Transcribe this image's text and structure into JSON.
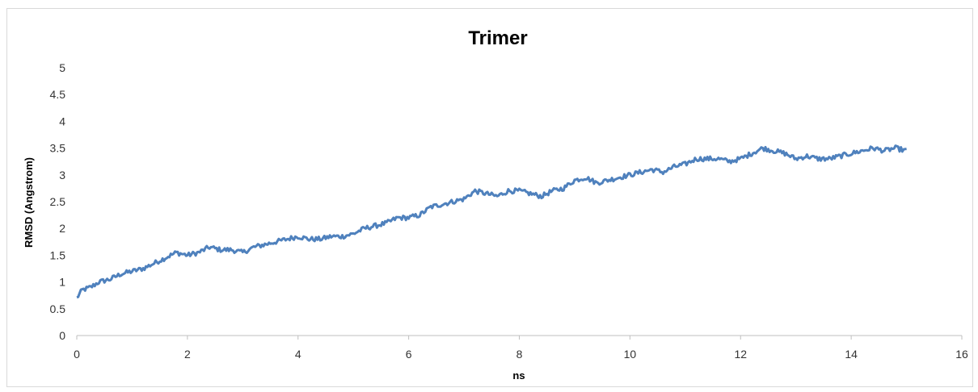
{
  "chart_data": {
    "type": "line",
    "title": "Trimer",
    "xlabel": "ns",
    "ylabel": "RMSD (Angstrom)",
    "xlim": [
      0,
      16
    ],
    "ylim": [
      0,
      5
    ],
    "x_ticks": [
      "0",
      "2",
      "4",
      "6",
      "8",
      "10",
      "12",
      "14",
      "16"
    ],
    "y_ticks": [
      "0",
      "0.5",
      "1",
      "1.5",
      "2",
      "2.5",
      "3",
      "3.5",
      "4",
      "4.5",
      "5"
    ],
    "grid": false,
    "legend": "none",
    "series": [
      {
        "color": "#4f81bd",
        "x": [
          0,
          0.1,
          0.25,
          0.4,
          0.6,
          0.8,
          1.0,
          1.2,
          1.4,
          1.6,
          1.8,
          2.0,
          2.2,
          2.4,
          2.6,
          2.8,
          3.0,
          3.2,
          3.4,
          3.6,
          3.8,
          4.0,
          4.2,
          4.4,
          4.6,
          4.8,
          5.0,
          5.2,
          5.4,
          5.6,
          5.8,
          6.0,
          6.2,
          6.4,
          6.6,
          6.8,
          7.0,
          7.2,
          7.4,
          7.6,
          7.8,
          8.0,
          8.2,
          8.4,
          8.6,
          8.8,
          9.0,
          9.2,
          9.4,
          9.6,
          9.8,
          10.0,
          10.2,
          10.4,
          10.6,
          10.8,
          11.0,
          11.2,
          11.4,
          11.6,
          11.8,
          12.0,
          12.2,
          12.4,
          12.6,
          12.8,
          13.0,
          13.2,
          13.4,
          13.6,
          13.8,
          14.0,
          14.2,
          14.4,
          14.6,
          14.8,
          15.0
        ],
        "y": [
          0.7,
          0.85,
          0.9,
          1.0,
          1.05,
          1.15,
          1.2,
          1.25,
          1.35,
          1.45,
          1.55,
          1.5,
          1.55,
          1.65,
          1.6,
          1.6,
          1.55,
          1.65,
          1.7,
          1.75,
          1.8,
          1.85,
          1.8,
          1.8,
          1.85,
          1.85,
          1.9,
          2.0,
          2.05,
          2.1,
          2.2,
          2.2,
          2.25,
          2.4,
          2.45,
          2.5,
          2.55,
          2.7,
          2.65,
          2.6,
          2.7,
          2.7,
          2.65,
          2.6,
          2.7,
          2.75,
          2.9,
          2.95,
          2.85,
          2.9,
          2.95,
          3.0,
          3.05,
          3.1,
          3.05,
          3.15,
          3.2,
          3.3,
          3.3,
          3.3,
          3.25,
          3.3,
          3.4,
          3.5,
          3.45,
          3.4,
          3.3,
          3.35,
          3.3,
          3.3,
          3.35,
          3.4,
          3.45,
          3.5,
          3.45,
          3.5,
          3.45
        ]
      }
    ]
  }
}
